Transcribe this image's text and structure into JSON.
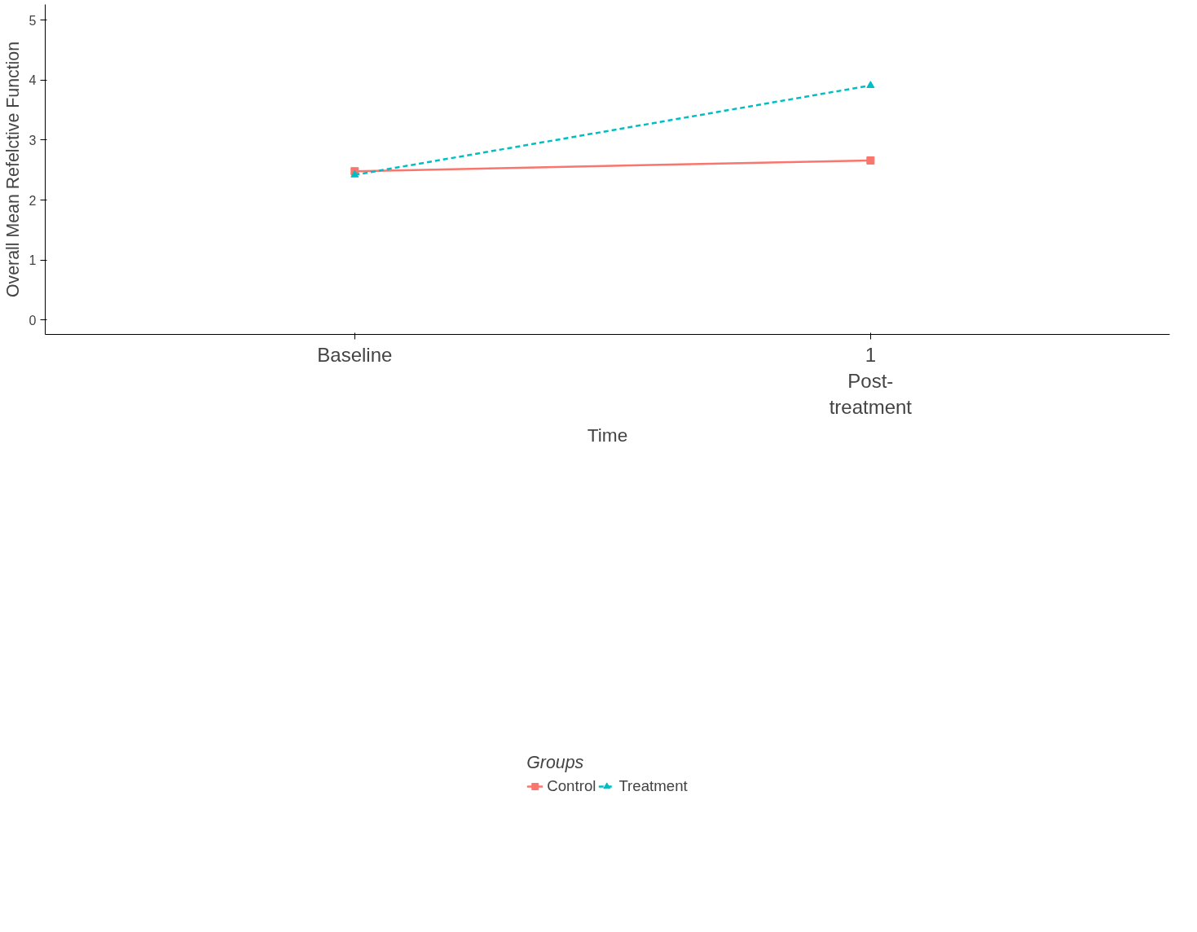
{
  "chart_data": {
    "type": "line",
    "xlabel": "Time",
    "ylabel": "Overall Mean Refelctive Function",
    "legend_title": "Groups",
    "legend": "bottom",
    "grid": false,
    "categories": [
      "Baseline",
      "1\nPost-\ntreatment"
    ],
    "ylim": [
      -0.24,
      5.26
    ],
    "yticks": [
      0,
      1,
      2,
      3,
      4,
      5
    ],
    "series": [
      {
        "name": "Control",
        "color": "#f8766d",
        "values": [
          2.48,
          2.66
        ],
        "marker": "square",
        "line_style": "solid"
      },
      {
        "name": "Treatment",
        "color": "#00bfc4",
        "values": [
          2.42,
          3.91
        ],
        "marker": "triangle",
        "line_style": "dashed"
      }
    ]
  }
}
